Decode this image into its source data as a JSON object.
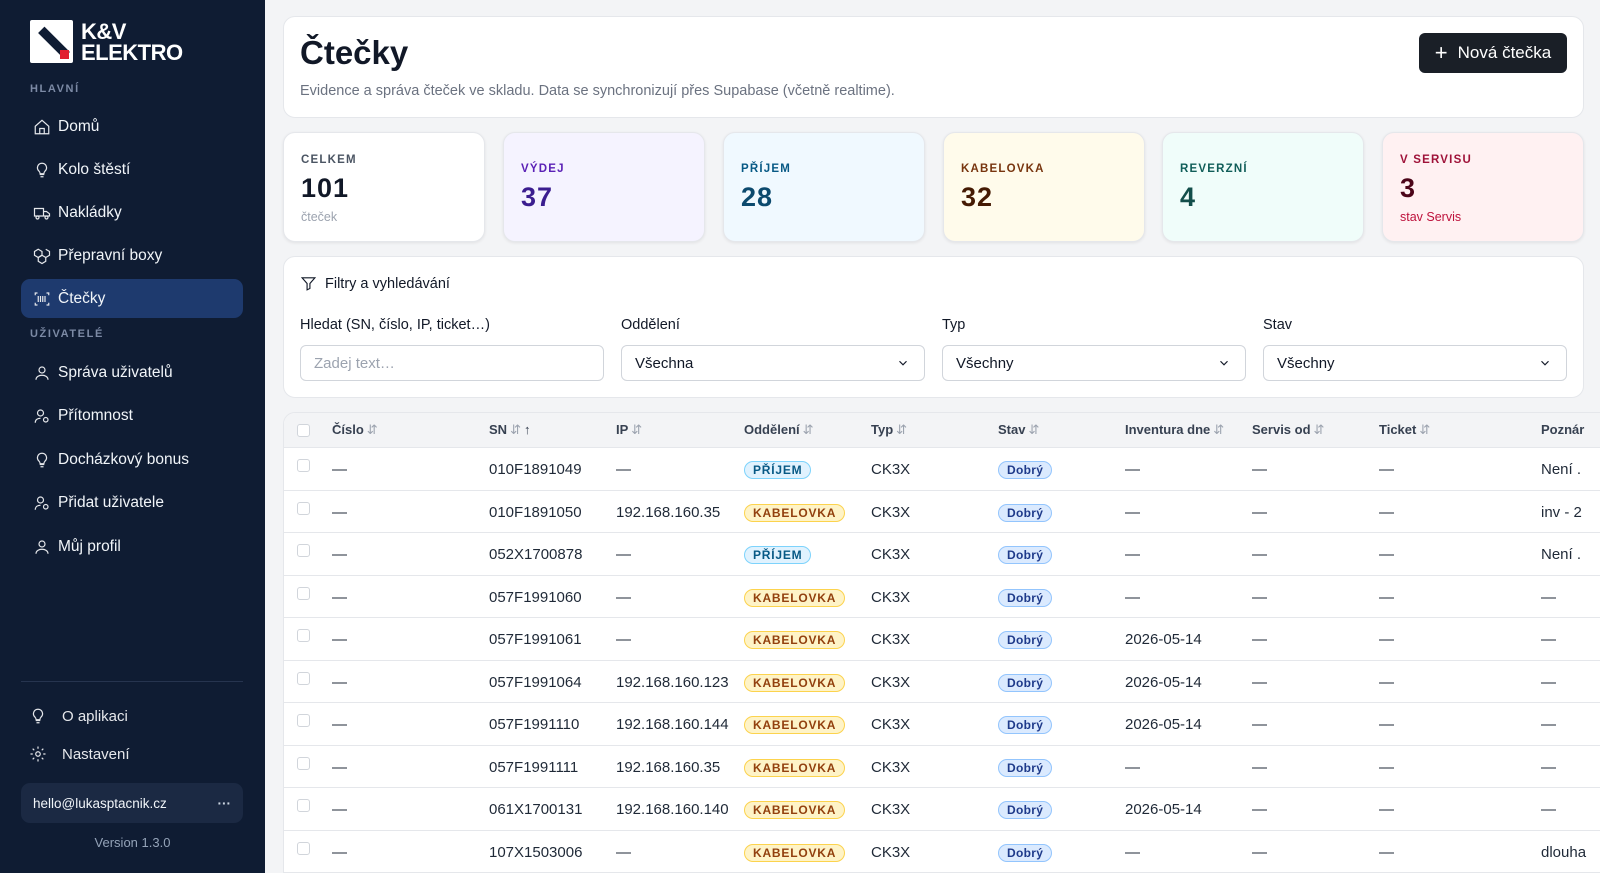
{
  "brand": {
    "line1": "K&V",
    "line2": "ELEKTRO"
  },
  "sidebar": {
    "section_main": "HLAVNÍ",
    "section_users": "UŽIVATELÉ",
    "main_items": [
      {
        "label": "Domů",
        "icon": "home-icon"
      },
      {
        "label": "Kolo štěstí",
        "icon": "lightbulb-icon"
      },
      {
        "label": "Nakládky",
        "icon": "truck-icon"
      },
      {
        "label": "Přepravní boxy",
        "icon": "boxes-icon"
      },
      {
        "label": "Čtečky",
        "icon": "barcode-icon",
        "active": true
      }
    ],
    "user_items": [
      {
        "label": "Správa uživatelů",
        "icon": "user-icon"
      },
      {
        "label": "Přítomnost",
        "icon": "user-cog-icon"
      },
      {
        "label": "Docházkový bonus",
        "icon": "lightbulb-icon"
      },
      {
        "label": "Přidat uživatele",
        "icon": "user-cog-icon"
      },
      {
        "label": "Můj profil",
        "icon": "user-icon"
      }
    ],
    "about": "O aplikaci",
    "settings": "Nastavení",
    "user_email": "hello@lukasptacnik.cz",
    "user_menu": "···",
    "version": "Version 1.3.0"
  },
  "header": {
    "title": "Čtečky",
    "subtitle": "Evidence a správa čteček ve skladu. Data se synchronizují přes Supabase (včetně realtime).",
    "new_button": "Nová čtečka"
  },
  "stats": [
    {
      "label": "CELKEM",
      "value": "101",
      "sub": "čteček"
    },
    {
      "label": "VÝDEJ",
      "value": "37",
      "sub": ""
    },
    {
      "label": "PŘÍJEM",
      "value": "28",
      "sub": ""
    },
    {
      "label": "KABELOVKA",
      "value": "32",
      "sub": ""
    },
    {
      "label": "REVERZNÍ",
      "value": "4",
      "sub": ""
    },
    {
      "label": "V SERVISU",
      "value": "3",
      "sub": "stav Servis"
    }
  ],
  "filters": {
    "title": "Filtry a vyhledávání",
    "search_label": "Hledat (SN, číslo, IP, ticket…)",
    "search_placeholder": "Zadej text…",
    "dept_label": "Oddělení",
    "dept_value": "Všechna",
    "type_label": "Typ",
    "type_value": "Všechny",
    "state_label": "Stav",
    "state_value": "Všechny"
  },
  "table": {
    "headers": [
      "Číslo",
      "SN",
      "IP",
      "Oddělení",
      "Typ",
      "Stav",
      "Inventura dne",
      "Servis od",
      "Ticket",
      "Poznár"
    ],
    "sort_icon": "⇵",
    "sort_active": "↑",
    "rows": [
      {
        "cislo": "—",
        "sn": "010F1891049",
        "ip": "—",
        "dept": "PŘÍJEM",
        "typ": "CK3X",
        "stav": "Dobrý",
        "inv": "—",
        "servis": "—",
        "ticket": "—",
        "note": "Není ."
      },
      {
        "cislo": "—",
        "sn": "010F1891050",
        "ip": "192.168.160.35",
        "dept": "KABELOVKA",
        "typ": "CK3X",
        "stav": "Dobrý",
        "inv": "—",
        "servis": "—",
        "ticket": "—",
        "note": "inv - 2"
      },
      {
        "cislo": "—",
        "sn": "052X1700878",
        "ip": "—",
        "dept": "PŘÍJEM",
        "typ": "CK3X",
        "stav": "Dobrý",
        "inv": "—",
        "servis": "—",
        "ticket": "—",
        "note": "Není ."
      },
      {
        "cislo": "—",
        "sn": "057F1991060",
        "ip": "—",
        "dept": "KABELOVKA",
        "typ": "CK3X",
        "stav": "Dobrý",
        "inv": "—",
        "servis": "—",
        "ticket": "—",
        "note": "—"
      },
      {
        "cislo": "—",
        "sn": "057F1991061",
        "ip": "—",
        "dept": "KABELOVKA",
        "typ": "CK3X",
        "stav": "Dobrý",
        "inv": "2026-05-14",
        "servis": "—",
        "ticket": "—",
        "note": "—"
      },
      {
        "cislo": "—",
        "sn": "057F1991064",
        "ip": "192.168.160.123",
        "dept": "KABELOVKA",
        "typ": "CK3X",
        "stav": "Dobrý",
        "inv": "2026-05-14",
        "servis": "—",
        "ticket": "—",
        "note": "—"
      },
      {
        "cislo": "—",
        "sn": "057F1991110",
        "ip": "192.168.160.144",
        "dept": "KABELOVKA",
        "typ": "CK3X",
        "stav": "Dobrý",
        "inv": "2026-05-14",
        "servis": "—",
        "ticket": "—",
        "note": "—"
      },
      {
        "cislo": "—",
        "sn": "057F1991111",
        "ip": "192.168.160.35",
        "dept": "KABELOVKA",
        "typ": "CK3X",
        "stav": "Dobrý",
        "inv": "—",
        "servis": "—",
        "ticket": "—",
        "note": "—"
      },
      {
        "cislo": "—",
        "sn": "061X1700131",
        "ip": "192.168.160.140",
        "dept": "KABELOVKA",
        "typ": "CK3X",
        "stav": "Dobrý",
        "inv": "2026-05-14",
        "servis": "—",
        "ticket": "—",
        "note": "—"
      },
      {
        "cislo": "—",
        "sn": "107X1503006",
        "ip": "—",
        "dept": "KABELOVKA",
        "typ": "CK3X",
        "stav": "Dobrý",
        "inv": "—",
        "servis": "—",
        "ticket": "—",
        "note": "dlouha"
      }
    ]
  },
  "colors": {
    "sidebar_bg": "#0f1c33",
    "active_nav": "#1e3a6e",
    "primary_button": "#1a1f27"
  }
}
